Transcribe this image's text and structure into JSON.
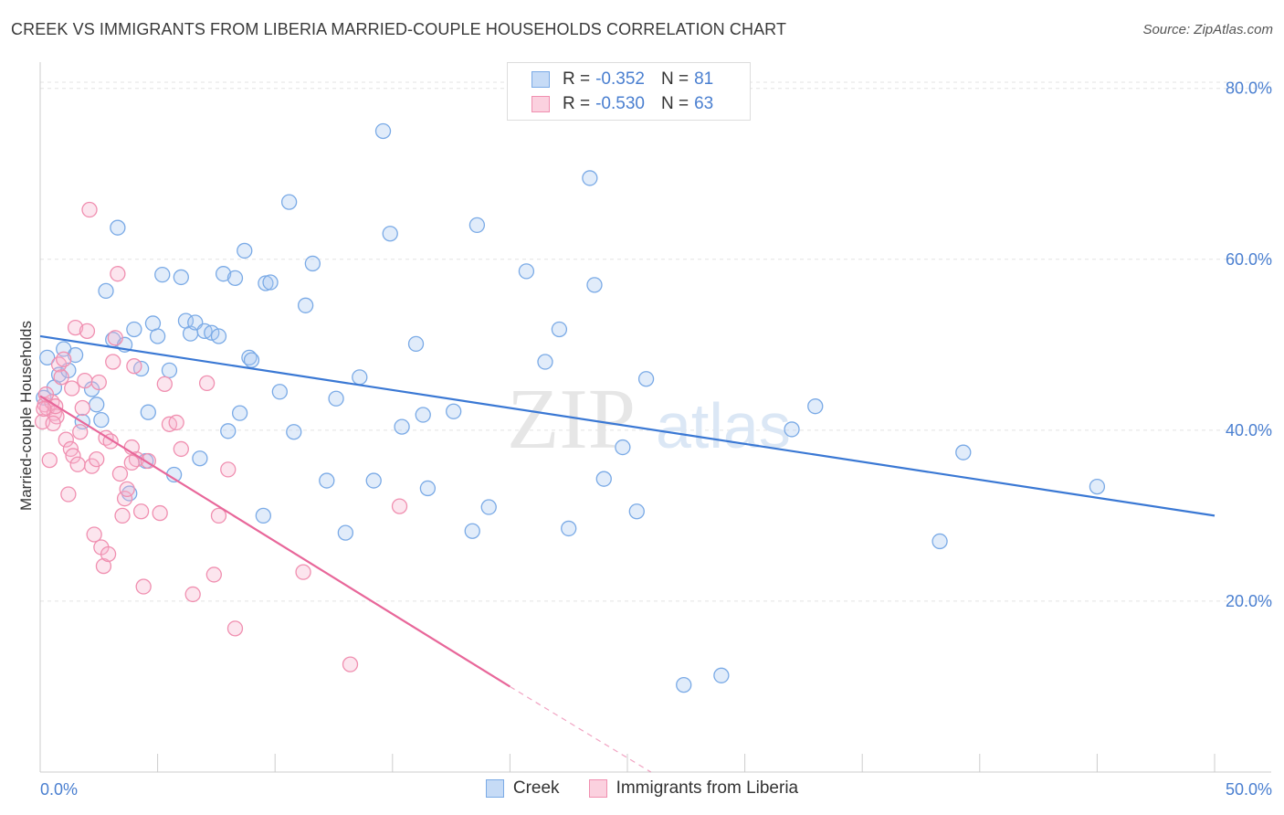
{
  "title": "CREEK VS IMMIGRANTS FROM LIBERIA MARRIED-COUPLE HOUSEHOLDS CORRELATION CHART",
  "source": "Source: ZipAtlas.com",
  "watermark": {
    "zip": "ZIP",
    "atlas": "atlas"
  },
  "legend": {
    "rows": [
      {
        "r_label": "R = ",
        "r_value": "-0.352",
        "n_label": "N = ",
        "n_value": "81",
        "color": "#7aaae6"
      },
      {
        "r_label": "R = ",
        "r_value": "-0.530",
        "n_label": "N = ",
        "n_value": "63",
        "color": "#f08fb0"
      }
    ]
  },
  "bottom_legend": [
    {
      "label": "Creek",
      "color": "#7aaae6"
    },
    {
      "label": "Immigrants from Liberia",
      "color": "#f08fb0"
    }
  ],
  "chart_data": {
    "type": "scatter",
    "title": "CREEK VS IMMIGRANTS FROM LIBERIA MARRIED-COUPLE HOUSEHOLDS CORRELATION CHART",
    "xlabel": "",
    "ylabel": "Married-couple Households",
    "xlim": [
      0,
      50
    ],
    "ylim": [
      0,
      82
    ],
    "x_tick_labels": [
      {
        "value": 0,
        "label": "0.0%"
      },
      {
        "value": 50,
        "label": "50.0%"
      }
    ],
    "y_tick_labels": [
      {
        "value": 20,
        "label": "20.0%"
      },
      {
        "value": 40,
        "label": "40.0%"
      },
      {
        "value": 60,
        "label": "60.0%"
      },
      {
        "value": 80,
        "label": "80.0%"
      }
    ],
    "grid": true,
    "legend_position": "top-center",
    "series": [
      {
        "name": "Creek",
        "color": "#7aaae6",
        "trendline": {
          "x": [
            0,
            50
          ],
          "y": [
            51.0,
            30.0
          ],
          "style": "solid"
        },
        "points": [
          [
            0.3,
            48.5
          ],
          [
            0.6,
            45
          ],
          [
            0.8,
            46.5
          ],
          [
            1.0,
            49.5
          ],
          [
            1.2,
            47
          ],
          [
            1.5,
            48.8
          ],
          [
            1.8,
            41
          ],
          [
            2.2,
            44.8
          ],
          [
            2.4,
            43
          ],
          [
            2.6,
            41.2
          ],
          [
            2.8,
            56.3
          ],
          [
            3.1,
            50.6
          ],
          [
            3.3,
            63.7
          ],
          [
            3.6,
            50
          ],
          [
            3.8,
            32.6
          ],
          [
            4.0,
            51.8
          ],
          [
            4.3,
            47.2
          ],
          [
            4.5,
            36.4
          ],
          [
            4.6,
            42.1
          ],
          [
            4.8,
            52.5
          ],
          [
            5.0,
            51
          ],
          [
            5.2,
            58.2
          ],
          [
            5.5,
            47
          ],
          [
            5.7,
            34.8
          ],
          [
            6.0,
            57.9
          ],
          [
            6.2,
            52.8
          ],
          [
            6.4,
            51.3
          ],
          [
            6.6,
            52.6
          ],
          [
            6.8,
            36.7
          ],
          [
            7.0,
            51.6
          ],
          [
            7.3,
            51.4
          ],
          [
            7.6,
            51
          ],
          [
            7.8,
            58.3
          ],
          [
            8.0,
            39.9
          ],
          [
            8.3,
            57.8
          ],
          [
            8.5,
            42
          ],
          [
            8.7,
            61
          ],
          [
            8.9,
            48.5
          ],
          [
            9.0,
            48.2
          ],
          [
            9.6,
            57.2
          ],
          [
            9.8,
            57.3
          ],
          [
            10.2,
            44.5
          ],
          [
            10.6,
            66.7
          ],
          [
            10.8,
            39.8
          ],
          [
            11.3,
            54.6
          ],
          [
            11.6,
            59.5
          ],
          [
            12.2,
            34.1
          ],
          [
            12.6,
            43.7
          ],
          [
            13.0,
            28
          ],
          [
            13.6,
            46.2
          ],
          [
            14.2,
            34.1
          ],
          [
            14.6,
            75
          ],
          [
            14.9,
            63
          ],
          [
            15.4,
            40.4
          ],
          [
            16.0,
            50.1
          ],
          [
            16.3,
            41.8
          ],
          [
            16.5,
            33.2
          ],
          [
            17.6,
            42.2
          ],
          [
            18.4,
            28.2
          ],
          [
            18.6,
            64
          ],
          [
            19.1,
            31
          ],
          [
            20.7,
            58.6
          ],
          [
            21.5,
            48
          ],
          [
            22.1,
            51.8
          ],
          [
            22.5,
            28.5
          ],
          [
            23.4,
            69.5
          ],
          [
            23.6,
            57
          ],
          [
            24.0,
            34.3
          ],
          [
            24.8,
            38
          ],
          [
            25.4,
            30.5
          ],
          [
            25.8,
            46
          ],
          [
            27.4,
            10.2
          ],
          [
            29.0,
            11.3
          ],
          [
            32.0,
            40.1
          ],
          [
            33.0,
            42.8
          ],
          [
            38.3,
            27
          ],
          [
            39.3,
            37.4
          ],
          [
            45.0,
            33.4
          ],
          [
            0.15,
            43.8
          ],
          [
            9.5,
            30
          ]
        ]
      },
      {
        "name": "Immigrants from Liberia",
        "color": "#f08fb0",
        "trendline": {
          "x": [
            0,
            20
          ],
          "y": [
            44.0,
            10.0
          ],
          "style": "solid",
          "extension": {
            "x": [
              20,
              26
            ],
            "y": [
              10.0,
              0.0
            ],
            "style": "dashed"
          }
        },
        "points": [
          [
            0.1,
            41
          ],
          [
            0.2,
            43
          ],
          [
            0.3,
            42.6
          ],
          [
            0.4,
            36.5
          ],
          [
            0.5,
            43.3
          ],
          [
            0.6,
            42
          ],
          [
            0.7,
            41.6
          ],
          [
            0.8,
            47.7
          ],
          [
            0.9,
            46.2
          ],
          [
            1.0,
            48.3
          ],
          [
            1.1,
            38.9
          ],
          [
            1.2,
            32.5
          ],
          [
            1.3,
            37.8
          ],
          [
            1.4,
            37
          ],
          [
            1.5,
            52
          ],
          [
            1.6,
            36
          ],
          [
            1.7,
            39.8
          ],
          [
            1.8,
            42.6
          ],
          [
            1.9,
            45.8
          ],
          [
            2.0,
            51.6
          ],
          [
            2.1,
            65.8
          ],
          [
            2.2,
            35.8
          ],
          [
            2.3,
            27.8
          ],
          [
            2.4,
            36.6
          ],
          [
            2.5,
            45.6
          ],
          [
            2.6,
            26.3
          ],
          [
            2.7,
            24.1
          ],
          [
            2.8,
            39.1
          ],
          [
            2.9,
            25.5
          ],
          [
            3.0,
            38.7
          ],
          [
            3.1,
            48
          ],
          [
            3.2,
            50.8
          ],
          [
            3.3,
            58.3
          ],
          [
            3.4,
            34.9
          ],
          [
            3.5,
            30
          ],
          [
            3.6,
            32
          ],
          [
            3.7,
            33.1
          ],
          [
            3.9,
            38
          ],
          [
            4.0,
            47.5
          ],
          [
            4.1,
            36.6
          ],
          [
            4.3,
            30.5
          ],
          [
            4.4,
            21.7
          ],
          [
            4.6,
            36.4
          ],
          [
            5.1,
            30.3
          ],
          [
            5.3,
            45.4
          ],
          [
            5.5,
            40.7
          ],
          [
            6.0,
            37.8
          ],
          [
            6.5,
            20.8
          ],
          [
            7.1,
            45.5
          ],
          [
            7.4,
            23.1
          ],
          [
            7.6,
            30
          ],
          [
            8.0,
            35.4
          ],
          [
            8.3,
            16.8
          ],
          [
            11.2,
            23.4
          ],
          [
            13.2,
            12.6
          ],
          [
            15.3,
            31.1
          ],
          [
            0.25,
            44.2
          ],
          [
            0.55,
            40.8
          ],
          [
            1.35,
            44.9
          ],
          [
            0.65,
            42.8
          ],
          [
            3.9,
            36.2
          ],
          [
            5.8,
            40.9
          ],
          [
            0.15,
            42.5
          ]
        ]
      }
    ]
  }
}
